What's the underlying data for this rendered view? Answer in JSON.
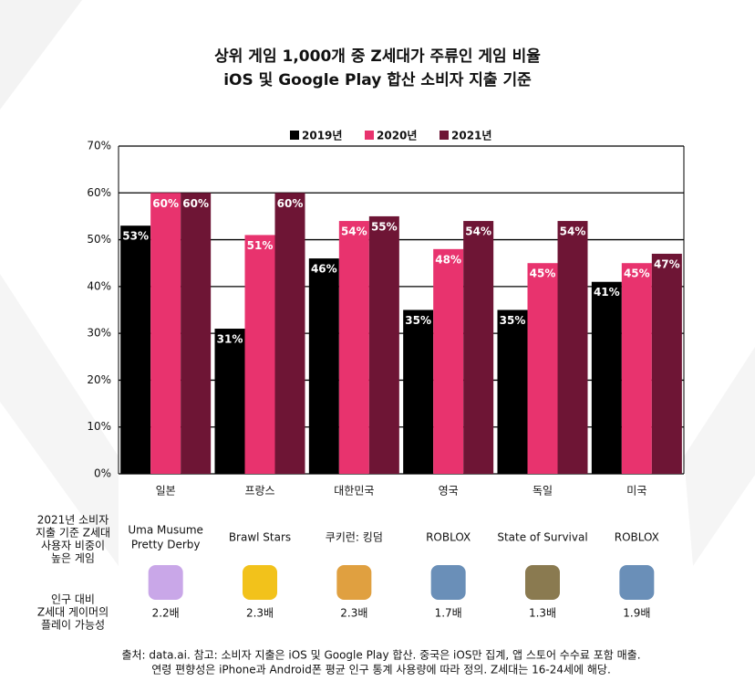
{
  "chart_data": {
    "type": "bar",
    "title": [
      "상위 게임 1,000개 중 Z세대가 주류인 게임 비율",
      "iOS 및 Google Play 합산 소비자 지출 기준"
    ],
    "categories": [
      "일본",
      "프랑스",
      "대한민국",
      "영국",
      "독일",
      "미국"
    ],
    "series": [
      {
        "name": "2019년",
        "color": "#000000",
        "values": [
          53,
          31,
          46,
          35,
          35,
          41
        ],
        "value_labels": [
          "53%",
          "31%",
          "46%",
          "35%",
          "35%",
          "41%"
        ]
      },
      {
        "name": "2020년",
        "color": "#e8336e",
        "values": [
          60,
          51,
          54,
          48,
          45,
          45
        ],
        "value_labels": [
          "60%",
          "51%",
          "54%",
          "48%",
          "45%",
          "45%"
        ]
      },
      {
        "name": "2021년",
        "color": "#6e1535",
        "values": [
          60,
          60,
          55,
          54,
          54,
          47
        ],
        "value_labels": [
          "60%",
          "60%",
          "55%",
          "54%",
          "54%",
          "47%"
        ]
      }
    ],
    "ylim": [
      0,
      70
    ],
    "yticks": [
      {
        "value": 0,
        "label": "0%"
      },
      {
        "value": 10,
        "label": "10%"
      },
      {
        "value": 20,
        "label": "20%"
      },
      {
        "value": 30,
        "label": "30%"
      },
      {
        "value": 40,
        "label": "40%"
      },
      {
        "value": 50,
        "label": "50%"
      },
      {
        "value": 60,
        "label": "60%"
      },
      {
        "value": 70,
        "label": "70%"
      }
    ],
    "grid": true,
    "legend": "top"
  },
  "row_labels": {
    "games": [
      "2021년 소비자",
      "지출 기준 Z세대",
      "사용자 비중이",
      "높은 게임"
    ],
    "ratio": [
      "인구 대비",
      "Z세대 게이머의",
      "플레이 가능성"
    ]
  },
  "games": [
    [
      "Uma Musume",
      "Pretty Derby"
    ],
    [
      "Brawl Stars"
    ],
    [
      "쿠키런: 킹덤"
    ],
    [
      "ROBLOX"
    ],
    [
      "State of Survival"
    ],
    [
      "ROBLOX"
    ]
  ],
  "ratios": [
    "2.2배",
    "2.3배",
    "2.3배",
    "1.7배",
    "1.3배",
    "1.9배"
  ],
  "footnote": [
    "출처: data.ai. 참고: 소비자 지출은 iOS 및 Google Play 합산. 중국은 iOS만 집계, 앱 스토어 수수료 포함 매출.",
    "연령 편향성은 iPhone과 Android폰 평균 인구 통계 사용량에 따라 정의. Z세대는 16-24세에 해당."
  ]
}
